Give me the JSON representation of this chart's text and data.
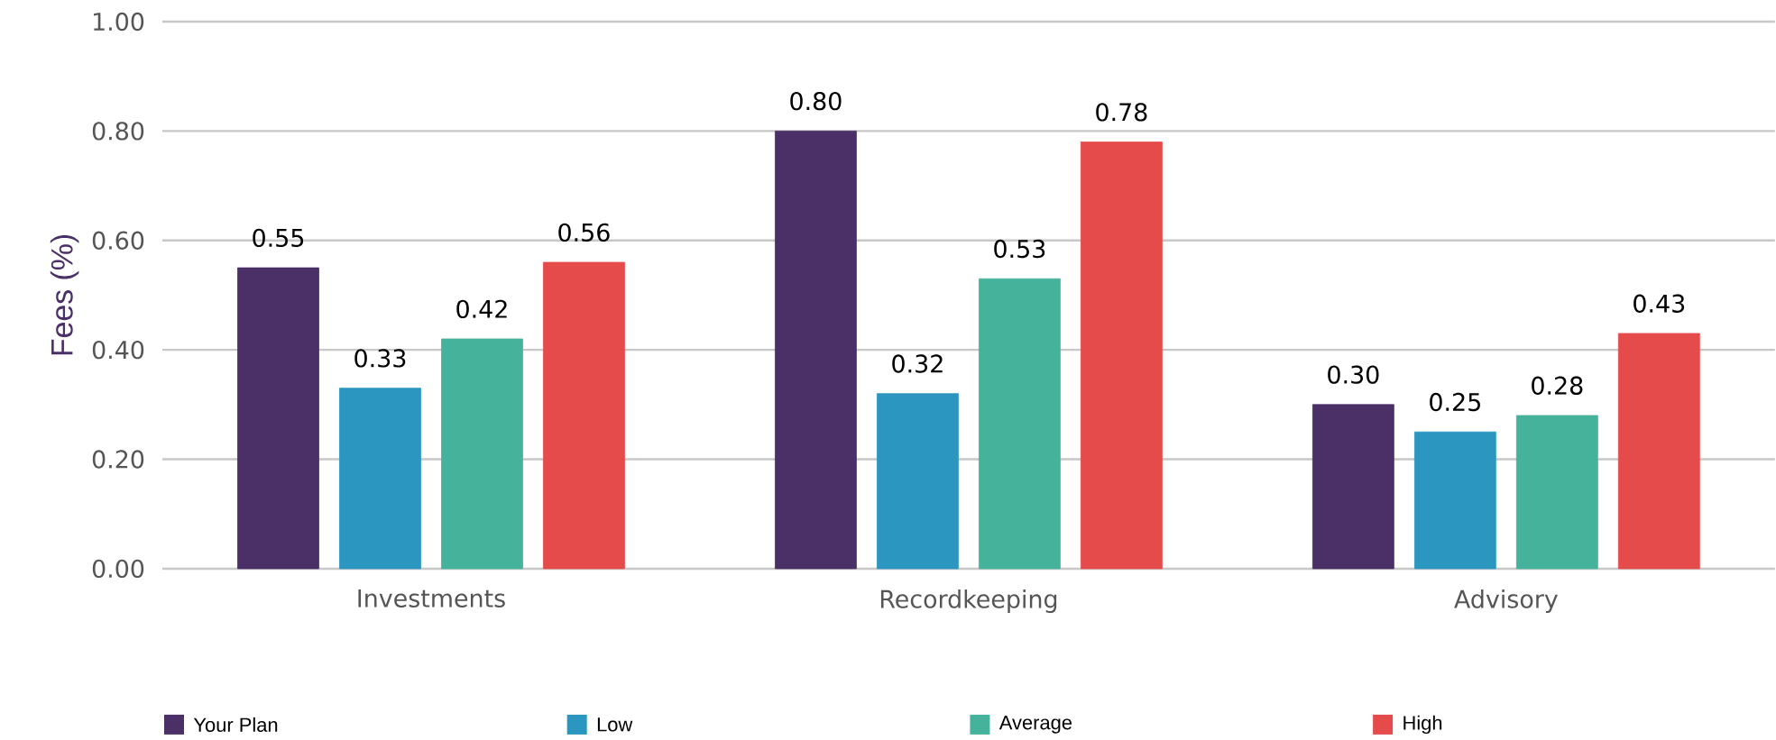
{
  "chart_data": {
    "type": "bar",
    "ylabel": "Fees (%)",
    "categories": [
      "Investments",
      "Recordkeeping",
      "Advisory"
    ],
    "series": [
      {
        "name": "Your Plan",
        "color": "#4b3068",
        "values": [
          0.55,
          0.8,
          0.3
        ],
        "value_labels": [
          "0.55",
          "0.80",
          "0.30"
        ]
      },
      {
        "name": "Low",
        "color": "#2b96c0",
        "values": [
          0.33,
          0.32,
          0.25
        ],
        "value_labels": [
          "0.33",
          "0.32",
          "0.25"
        ]
      },
      {
        "name": "Average",
        "color": "#45b39b",
        "values": [
          0.42,
          0.53,
          0.28
        ],
        "value_labels": [
          "0.42",
          "0.53",
          "0.28"
        ]
      },
      {
        "name": "High",
        "color": "#e54b4b",
        "values": [
          0.56,
          0.78,
          0.43
        ],
        "value_labels": [
          "0.56",
          "0.78",
          "0.43"
        ]
      }
    ],
    "ylim": [
      0,
      1
    ],
    "yticks": [
      {
        "value": 0,
        "label": "0.00"
      },
      {
        "value": 0.2,
        "label": "0.20"
      },
      {
        "value": 0.4,
        "label": "0.40"
      },
      {
        "value": 0.6,
        "label": "0.60"
      },
      {
        "value": 0.8,
        "label": "0.80"
      },
      {
        "value": 1,
        "label": "1.00"
      }
    ],
    "grid": "y",
    "legend": "bottom"
  }
}
